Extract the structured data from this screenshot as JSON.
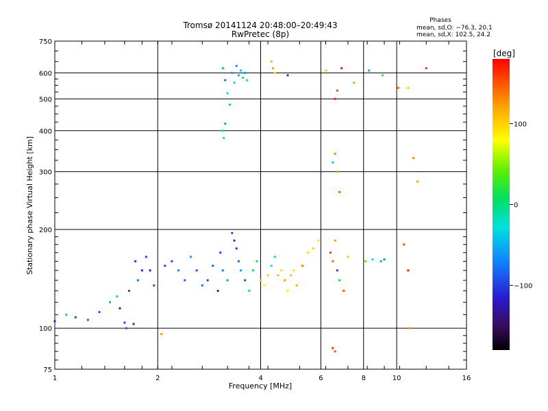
{
  "chart_data": {
    "type": "scatter",
    "title": "Tromsø 20141124 20:48:00–20:49:43",
    "subtitle": "RwPretec (8p)",
    "xlabel": "Frequency [MHz]",
    "ylabel": "Stationary phase Virtual Height [km]",
    "x_scale": "log",
    "y_scale": "log",
    "xlim": [
      1,
      16
    ],
    "ylim": [
      75,
      750
    ],
    "x_ticks": [
      1,
      2,
      4,
      6,
      8,
      10,
      16
    ],
    "y_ticks": [
      75,
      100,
      200,
      300,
      400,
      500,
      600,
      750
    ],
    "x_tick_labels": [
      "1",
      "2",
      "4",
      "6",
      "8",
      "10",
      "16"
    ],
    "y_tick_labels": [
      "75",
      "100",
      "200",
      "300",
      "400",
      "500",
      "600",
      "750"
    ],
    "grid": true,
    "stats": {
      "heading": "Phases",
      "line1": "mean, sd,O: −76.3, 20.1",
      "line2": "mean, sd,X: 102.5, 24.2"
    },
    "colorbar": {
      "label": "[deg]",
      "range": [
        -180,
        180
      ],
      "ticks": [
        100,
        0,
        -100
      ],
      "tick_labels": [
        "100",
        "0",
        "−100"
      ]
    },
    "points": [
      [
        1.0,
        105,
        -110
      ],
      [
        1.08,
        110,
        -5
      ],
      [
        1.15,
        108,
        -100
      ],
      [
        1.25,
        106,
        -90
      ],
      [
        1.35,
        112,
        -95
      ],
      [
        1.45,
        120,
        -50
      ],
      [
        1.52,
        125,
        -40
      ],
      [
        1.55,
        115,
        -120
      ],
      [
        1.6,
        104,
        -100
      ],
      [
        1.62,
        100,
        -90
      ],
      [
        1.7,
        103,
        -110
      ],
      [
        1.65,
        130,
        -95
      ],
      [
        1.72,
        160,
        -100
      ],
      [
        1.75,
        140,
        -80
      ],
      [
        1.8,
        150,
        -110
      ],
      [
        1.85,
        165,
        -100
      ],
      [
        1.9,
        150,
        -115
      ],
      [
        1.95,
        135,
        -90
      ],
      [
        2.1,
        155,
        -100
      ],
      [
        2.2,
        160,
        -95
      ],
      [
        2.3,
        150,
        -70
      ],
      [
        2.4,
        140,
        -85
      ],
      [
        2.5,
        165,
        -60
      ],
      [
        2.6,
        150,
        -95
      ],
      [
        2.7,
        135,
        -80
      ],
      [
        2.8,
        140,
        -105
      ],
      [
        2.9,
        155,
        -90
      ],
      [
        3.0,
        130,
        -110
      ],
      [
        3.05,
        170,
        -100
      ],
      [
        3.1,
        150,
        -75
      ],
      [
        3.2,
        140,
        -65
      ],
      [
        3.3,
        195,
        -95
      ],
      [
        3.35,
        185,
        -110
      ],
      [
        3.4,
        175,
        -100
      ],
      [
        3.45,
        160,
        -85
      ],
      [
        3.5,
        150,
        -60
      ],
      [
        3.6,
        140,
        -95
      ],
      [
        3.7,
        130,
        -20
      ],
      [
        3.8,
        150,
        -5
      ],
      [
        3.9,
        160,
        -40
      ],
      [
        4.0,
        140,
        60
      ],
      [
        4.1,
        135,
        80
      ],
      [
        4.2,
        145,
        100
      ],
      [
        4.3,
        155,
        -30
      ],
      [
        4.4,
        165,
        -10
      ],
      [
        4.5,
        145,
        110
      ],
      [
        4.6,
        150,
        95
      ],
      [
        4.7,
        140,
        120
      ],
      [
        4.8,
        130,
        85
      ],
      [
        4.9,
        145,
        105
      ],
      [
        5.0,
        150,
        90
      ],
      [
        5.1,
        135,
        115
      ],
      [
        5.3,
        155,
        130
      ],
      [
        5.5,
        170,
        70
      ],
      [
        5.7,
        175,
        100
      ],
      [
        5.9,
        185,
        90
      ],
      [
        6.4,
        170,
        160
      ],
      [
        6.5,
        160,
        140
      ],
      [
        6.6,
        185,
        120
      ],
      [
        6.7,
        150,
        -100
      ],
      [
        6.8,
        140,
        20
      ],
      [
        7.0,
        130,
        150
      ],
      [
        7.2,
        165,
        60
      ],
      [
        8.1,
        160,
        40
      ],
      [
        8.5,
        162,
        -20
      ],
      [
        9.0,
        160,
        -50
      ],
      [
        9.2,
        162,
        -70
      ],
      [
        3.1,
        620,
        -50
      ],
      [
        3.15,
        570,
        -80
      ],
      [
        3.2,
        520,
        -30
      ],
      [
        3.25,
        480,
        -40
      ],
      [
        3.3,
        600,
        -60
      ],
      [
        3.35,
        560,
        -30
      ],
      [
        3.4,
        630,
        -70
      ],
      [
        3.45,
        590,
        -50
      ],
      [
        3.5,
        610,
        -40
      ],
      [
        3.55,
        580,
        -20
      ],
      [
        3.6,
        600,
        -60
      ],
      [
        3.65,
        570,
        -30
      ],
      [
        3.1,
        400,
        -20
      ],
      [
        3.12,
        380,
        -30
      ],
      [
        3.15,
        420,
        -60
      ],
      [
        4.3,
        650,
        110
      ],
      [
        4.35,
        620,
        120
      ],
      [
        4.4,
        600,
        90
      ],
      [
        4.8,
        590,
        -110
      ],
      [
        6.2,
        610,
        60
      ],
      [
        6.6,
        500,
        170
      ],
      [
        6.7,
        530,
        150
      ],
      [
        6.9,
        620,
        175
      ],
      [
        7.5,
        560,
        40
      ],
      [
        8.3,
        610,
        -60
      ],
      [
        9.1,
        590,
        20
      ],
      [
        10.1,
        540,
        140
      ],
      [
        10.8,
        540,
        100
      ],
      [
        12.2,
        620,
        160
      ],
      [
        6.5,
        320,
        -40
      ],
      [
        6.6,
        340,
        130
      ],
      [
        6.7,
        300,
        120
      ],
      [
        6.8,
        260,
        140
      ],
      [
        11.5,
        280,
        120
      ],
      [
        11.2,
        330,
        130
      ],
      [
        10.5,
        180,
        150
      ],
      [
        10.8,
        150,
        170
      ],
      [
        10.9,
        100,
        120
      ],
      [
        6.5,
        87,
        160
      ],
      [
        6.6,
        85,
        150
      ],
      [
        2.05,
        96,
        120
      ]
    ]
  }
}
